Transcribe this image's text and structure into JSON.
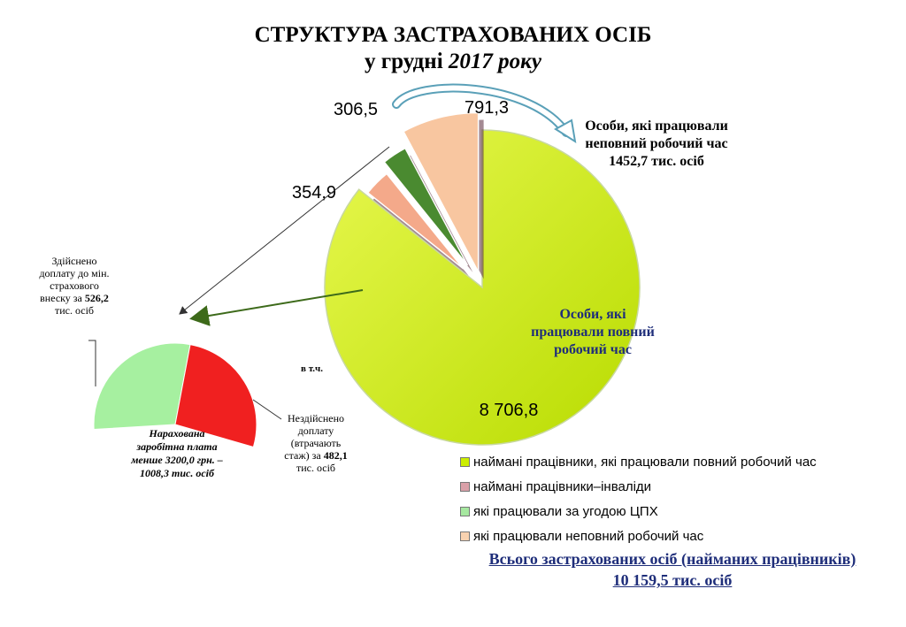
{
  "title": {
    "line1": "СТРУКТУРА ЗАСТРАХОВАНИХ ОСІБ",
    "line2_prefix": "у грудні ",
    "line2_year": "2017 року"
  },
  "chart_data": [
    {
      "type": "pie",
      "slices": [
        {
          "label": "наймані працівники, які працювали повний робочий час",
          "value": 8706.8,
          "display": "8 706,8",
          "color": "#ccee00"
        },
        {
          "label": "наймані працівники–інваліди",
          "value": 354.9,
          "display": "354,9",
          "color": "#f4a98a"
        },
        {
          "label": "які працювали за угодою ЦПХ",
          "value": 306.5,
          "display": "306,5",
          "color": "#4a8a30"
        },
        {
          "label": "які працювали неповний робочий час",
          "value": 791.3,
          "display": "791,3",
          "color": "#f8c6a0"
        }
      ],
      "legend": [
        {
          "label": "наймані працівники, які працювали повний робочий час",
          "color": "#ccee00"
        },
        {
          "label": "наймані працівники–інваліди",
          "color": "#d9a0a8"
        },
        {
          "label": "які працювали за угодою ЦПХ",
          "color": "#a6e8a0"
        },
        {
          "label": "які працювали неповний робочий час",
          "color": "#f8d2b0"
        }
      ],
      "legend_position": "bottom-right"
    },
    {
      "type": "pie",
      "slices": [
        {
          "label": "Здійснено доплату до мін. страхового внеску",
          "value": 526.2,
          "color": "#a6f0a0"
        },
        {
          "label": "Нездійснено доплату (втрачають стаж)",
          "value": 482.1,
          "color": "#f02020"
        }
      ]
    }
  ],
  "main_label": "Особи, які працювали повний робочий час",
  "incl_label": "в т.ч.",
  "part_time_note": {
    "line1": "Особи, які працювали",
    "line2": "неповний робочий час",
    "line3": "1452,7 тис. осіб"
  },
  "paid_note": {
    "text": "Здійснено доплату до мін. страхового внеску за",
    "value": "526,2",
    "unit": "тис. осіб"
  },
  "unpaid_note": {
    "text": "Нездійснено доплату (втрачають стаж) за",
    "value": "482,1",
    "unit": "тис. осіб"
  },
  "accrued_note": {
    "line1": "Нарахована",
    "line2": "заробітна плата",
    "line3": "менше 3200,0 грн. –",
    "line4": "1008,3 тис. осіб"
  },
  "total": {
    "line1": "Всього застрахованих  осіб (найманих працівників)",
    "line2": "10 159,5 тис. осіб"
  }
}
